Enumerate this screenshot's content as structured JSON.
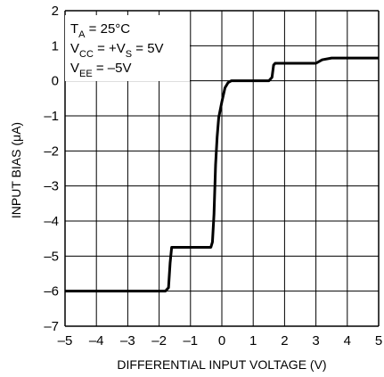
{
  "chart_data": {
    "type": "line",
    "title": "",
    "xlabel": "DIFFERENTIAL INPUT VOLTAGE (V)",
    "ylabel": "INPUT BIAS (μA)",
    "xlim": [
      -5,
      5
    ],
    "ylim": [
      -7,
      2
    ],
    "x_ticks": [
      -5,
      -4,
      -3,
      -2,
      -1,
      0,
      1,
      2,
      3,
      4,
      5
    ],
    "x_tick_labels": [
      "–5",
      "–4",
      "–3",
      "–2",
      "–1",
      "0",
      "1",
      "2",
      "3",
      "4",
      "5"
    ],
    "y_ticks": [
      2,
      1,
      0,
      -1,
      -2,
      -3,
      -4,
      -5,
      -6,
      -7
    ],
    "y_tick_labels": [
      "2",
      "1",
      "0",
      "–1",
      "–2",
      "–3",
      "–4",
      "–5",
      "–6",
      "–7"
    ],
    "grid": true,
    "legend": "none",
    "line_color": "#000000",
    "conditions": {
      "line1": {
        "main": "T",
        "sub": "A",
        "rest": " = 25°C"
      },
      "line2": {
        "main": "V",
        "sub": "CC",
        "rest": " = +V",
        "sub2": "S",
        "rest2": " = 5V"
      },
      "line3": {
        "main": "V",
        "sub": "EE",
        "rest": " = –5V"
      }
    },
    "series": [
      {
        "x": [
          -5,
          -1.8,
          -1.7,
          -1.65,
          -1.6,
          -0.35,
          -0.3,
          -0.25,
          -0.2,
          -0.15,
          -0.1,
          0,
          0.1,
          0.2,
          0.3,
          1.5,
          1.6,
          1.65,
          1.7,
          3.0,
          3.2,
          3.5,
          5
        ],
        "y": [
          -6.0,
          -6.0,
          -5.9,
          -5.2,
          -4.75,
          -4.75,
          -4.6,
          -3.8,
          -2.4,
          -1.6,
          -1.05,
          -0.6,
          -0.2,
          -0.05,
          0.0,
          0.0,
          0.1,
          0.45,
          0.5,
          0.5,
          0.6,
          0.65,
          0.65
        ]
      }
    ]
  }
}
